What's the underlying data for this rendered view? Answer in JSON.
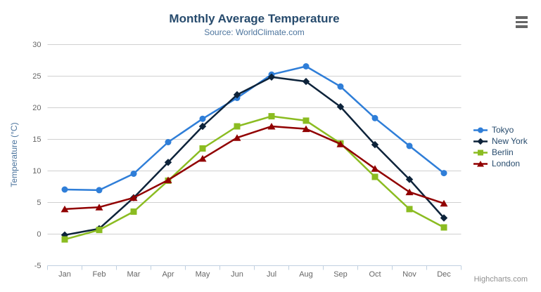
{
  "colors": {
    "background": "#ffffff",
    "title": "#274b6d",
    "subtitle": "#4d759e",
    "axis_label": "#666666",
    "axis_title": "#4d759e",
    "grid": "#d0d0d0",
    "axis_line": "#c0d0e0",
    "legend_text": "#274b6d",
    "credits": "#909090",
    "menu_icon": "#666666"
  },
  "credits": {
    "label": "Highcharts.com"
  },
  "chart_data": {
    "type": "line",
    "title": "Monthly Average Temperature",
    "subtitle": "Source: WorldClimate.com",
    "categories": [
      "Jan",
      "Feb",
      "Mar",
      "Apr",
      "May",
      "Jun",
      "Jul",
      "Aug",
      "Sep",
      "Oct",
      "Nov",
      "Dec"
    ],
    "xlabel": "",
    "ylabel": "Temperature (°C)",
    "ylim": [
      -5,
      30
    ],
    "yticks": [
      -5,
      0,
      5,
      10,
      15,
      20,
      25,
      30
    ],
    "grid": true,
    "legend_position": "right",
    "series": [
      {
        "name": "Tokyo",
        "color": "#2f7ed8",
        "marker": "circle",
        "values": [
          7.0,
          6.9,
          9.5,
          14.5,
          18.2,
          21.5,
          25.2,
          26.5,
          23.3,
          18.3,
          13.9,
          9.6
        ]
      },
      {
        "name": "New York",
        "color": "#0d233a",
        "marker": "diamond",
        "values": [
          -0.2,
          0.8,
          5.7,
          11.3,
          17.0,
          22.0,
          24.8,
          24.1,
          20.1,
          14.1,
          8.6,
          2.5
        ]
      },
      {
        "name": "Berlin",
        "color": "#8bbc21",
        "marker": "square",
        "values": [
          -0.9,
          0.6,
          3.5,
          8.4,
          13.5,
          17.0,
          18.6,
          17.9,
          14.3,
          9.0,
          3.9,
          1.0
        ]
      },
      {
        "name": "London",
        "color": "#910000",
        "marker": "triangle",
        "values": [
          3.9,
          4.2,
          5.7,
          8.5,
          11.9,
          15.2,
          17.0,
          16.6,
          14.2,
          10.3,
          6.6,
          4.8
        ]
      }
    ]
  }
}
